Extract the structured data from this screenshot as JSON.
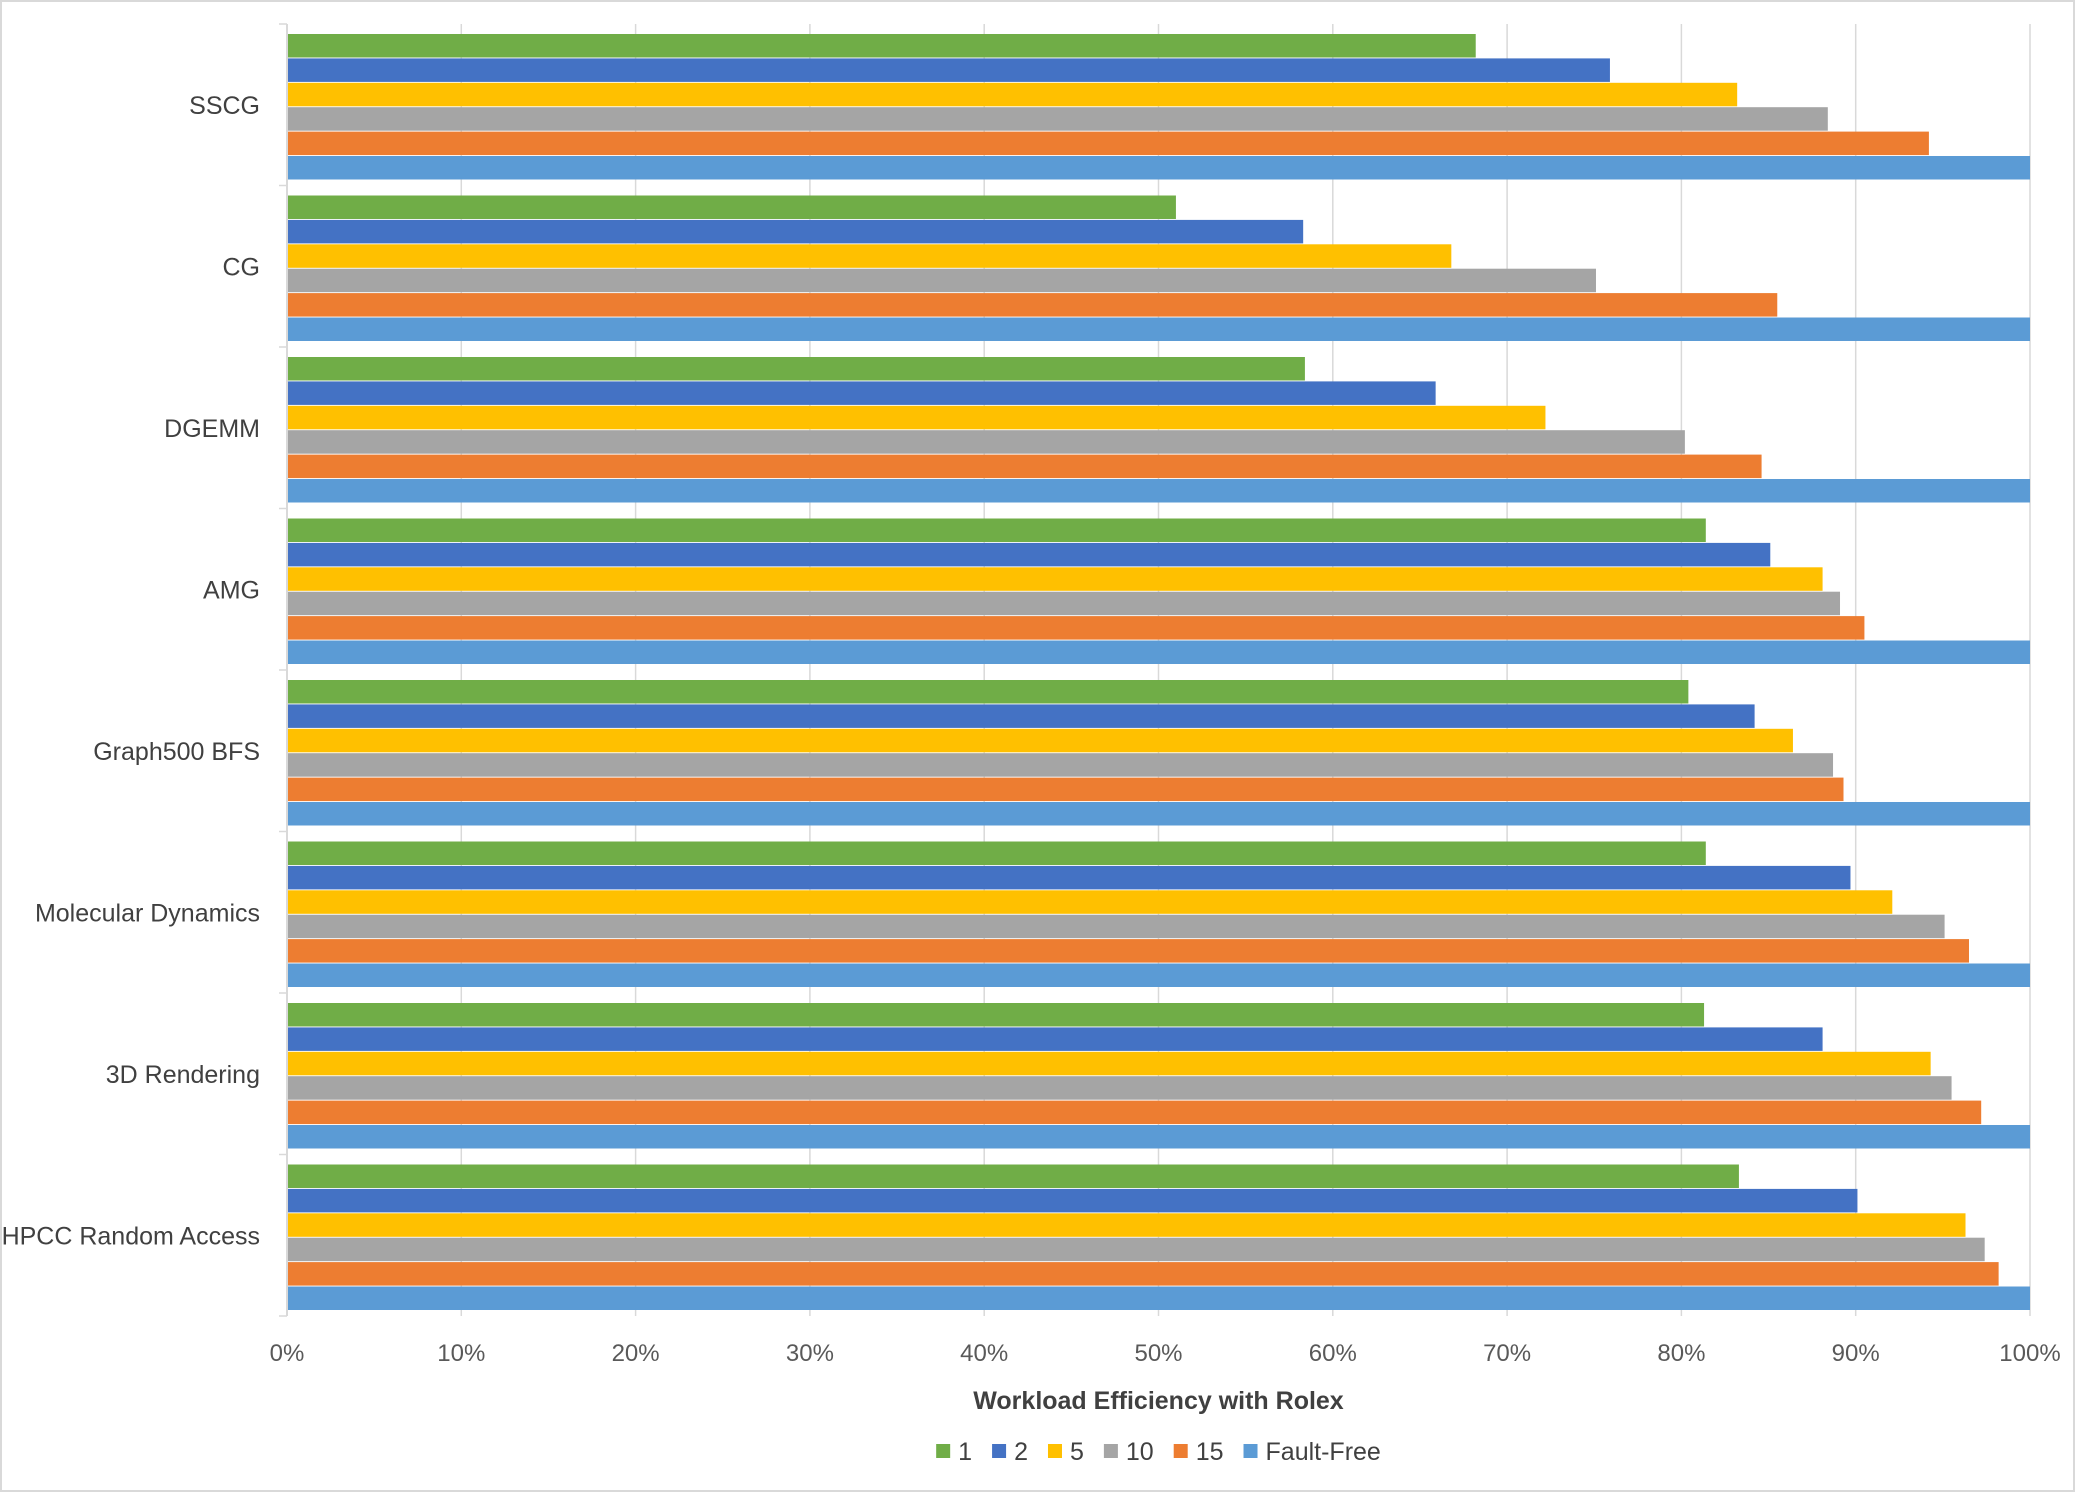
{
  "chart_data": {
    "type": "bar",
    "orientation": "horizontal",
    "title": "",
    "xlabel": "Workload Efficiency with Rolex",
    "ylabel": "",
    "xlim": [
      0,
      100
    ],
    "x_tick_labels": [
      "0%",
      "10%",
      "20%",
      "30%",
      "40%",
      "50%",
      "60%",
      "70%",
      "80%",
      "90%",
      "100%"
    ],
    "grid": true,
    "legend_position": "bottom",
    "categories": [
      "SSCG",
      "CG",
      "DGEMM",
      "AMG",
      "Graph500 BFS",
      "Molecular Dynamics",
      "3D Rendering",
      "HPCC Random Access"
    ],
    "series": [
      {
        "name": "1",
        "color": "#70ad47",
        "values": [
          68.2,
          51.0,
          58.4,
          81.4,
          80.4,
          81.4,
          81.3,
          83.3
        ]
      },
      {
        "name": "2",
        "color": "#4472c4",
        "values": [
          75.9,
          58.3,
          65.9,
          85.1,
          84.2,
          89.7,
          88.1,
          90.1
        ]
      },
      {
        "name": "5",
        "color": "#ffc000",
        "values": [
          83.2,
          66.8,
          72.2,
          88.1,
          86.4,
          92.1,
          94.3,
          96.3
        ]
      },
      {
        "name": "10",
        "color": "#a5a5a5",
        "values": [
          88.4,
          75.1,
          80.2,
          89.1,
          88.7,
          95.1,
          95.5,
          97.4
        ]
      },
      {
        "name": "15",
        "color": "#ed7d31",
        "values": [
          94.2,
          85.5,
          84.6,
          90.5,
          89.3,
          96.5,
          97.2,
          98.2
        ]
      },
      {
        "name": "Fault-Free",
        "color": "#5b9bd5",
        "values": [
          100,
          100,
          100,
          100,
          100,
          100,
          100,
          100
        ]
      }
    ]
  }
}
